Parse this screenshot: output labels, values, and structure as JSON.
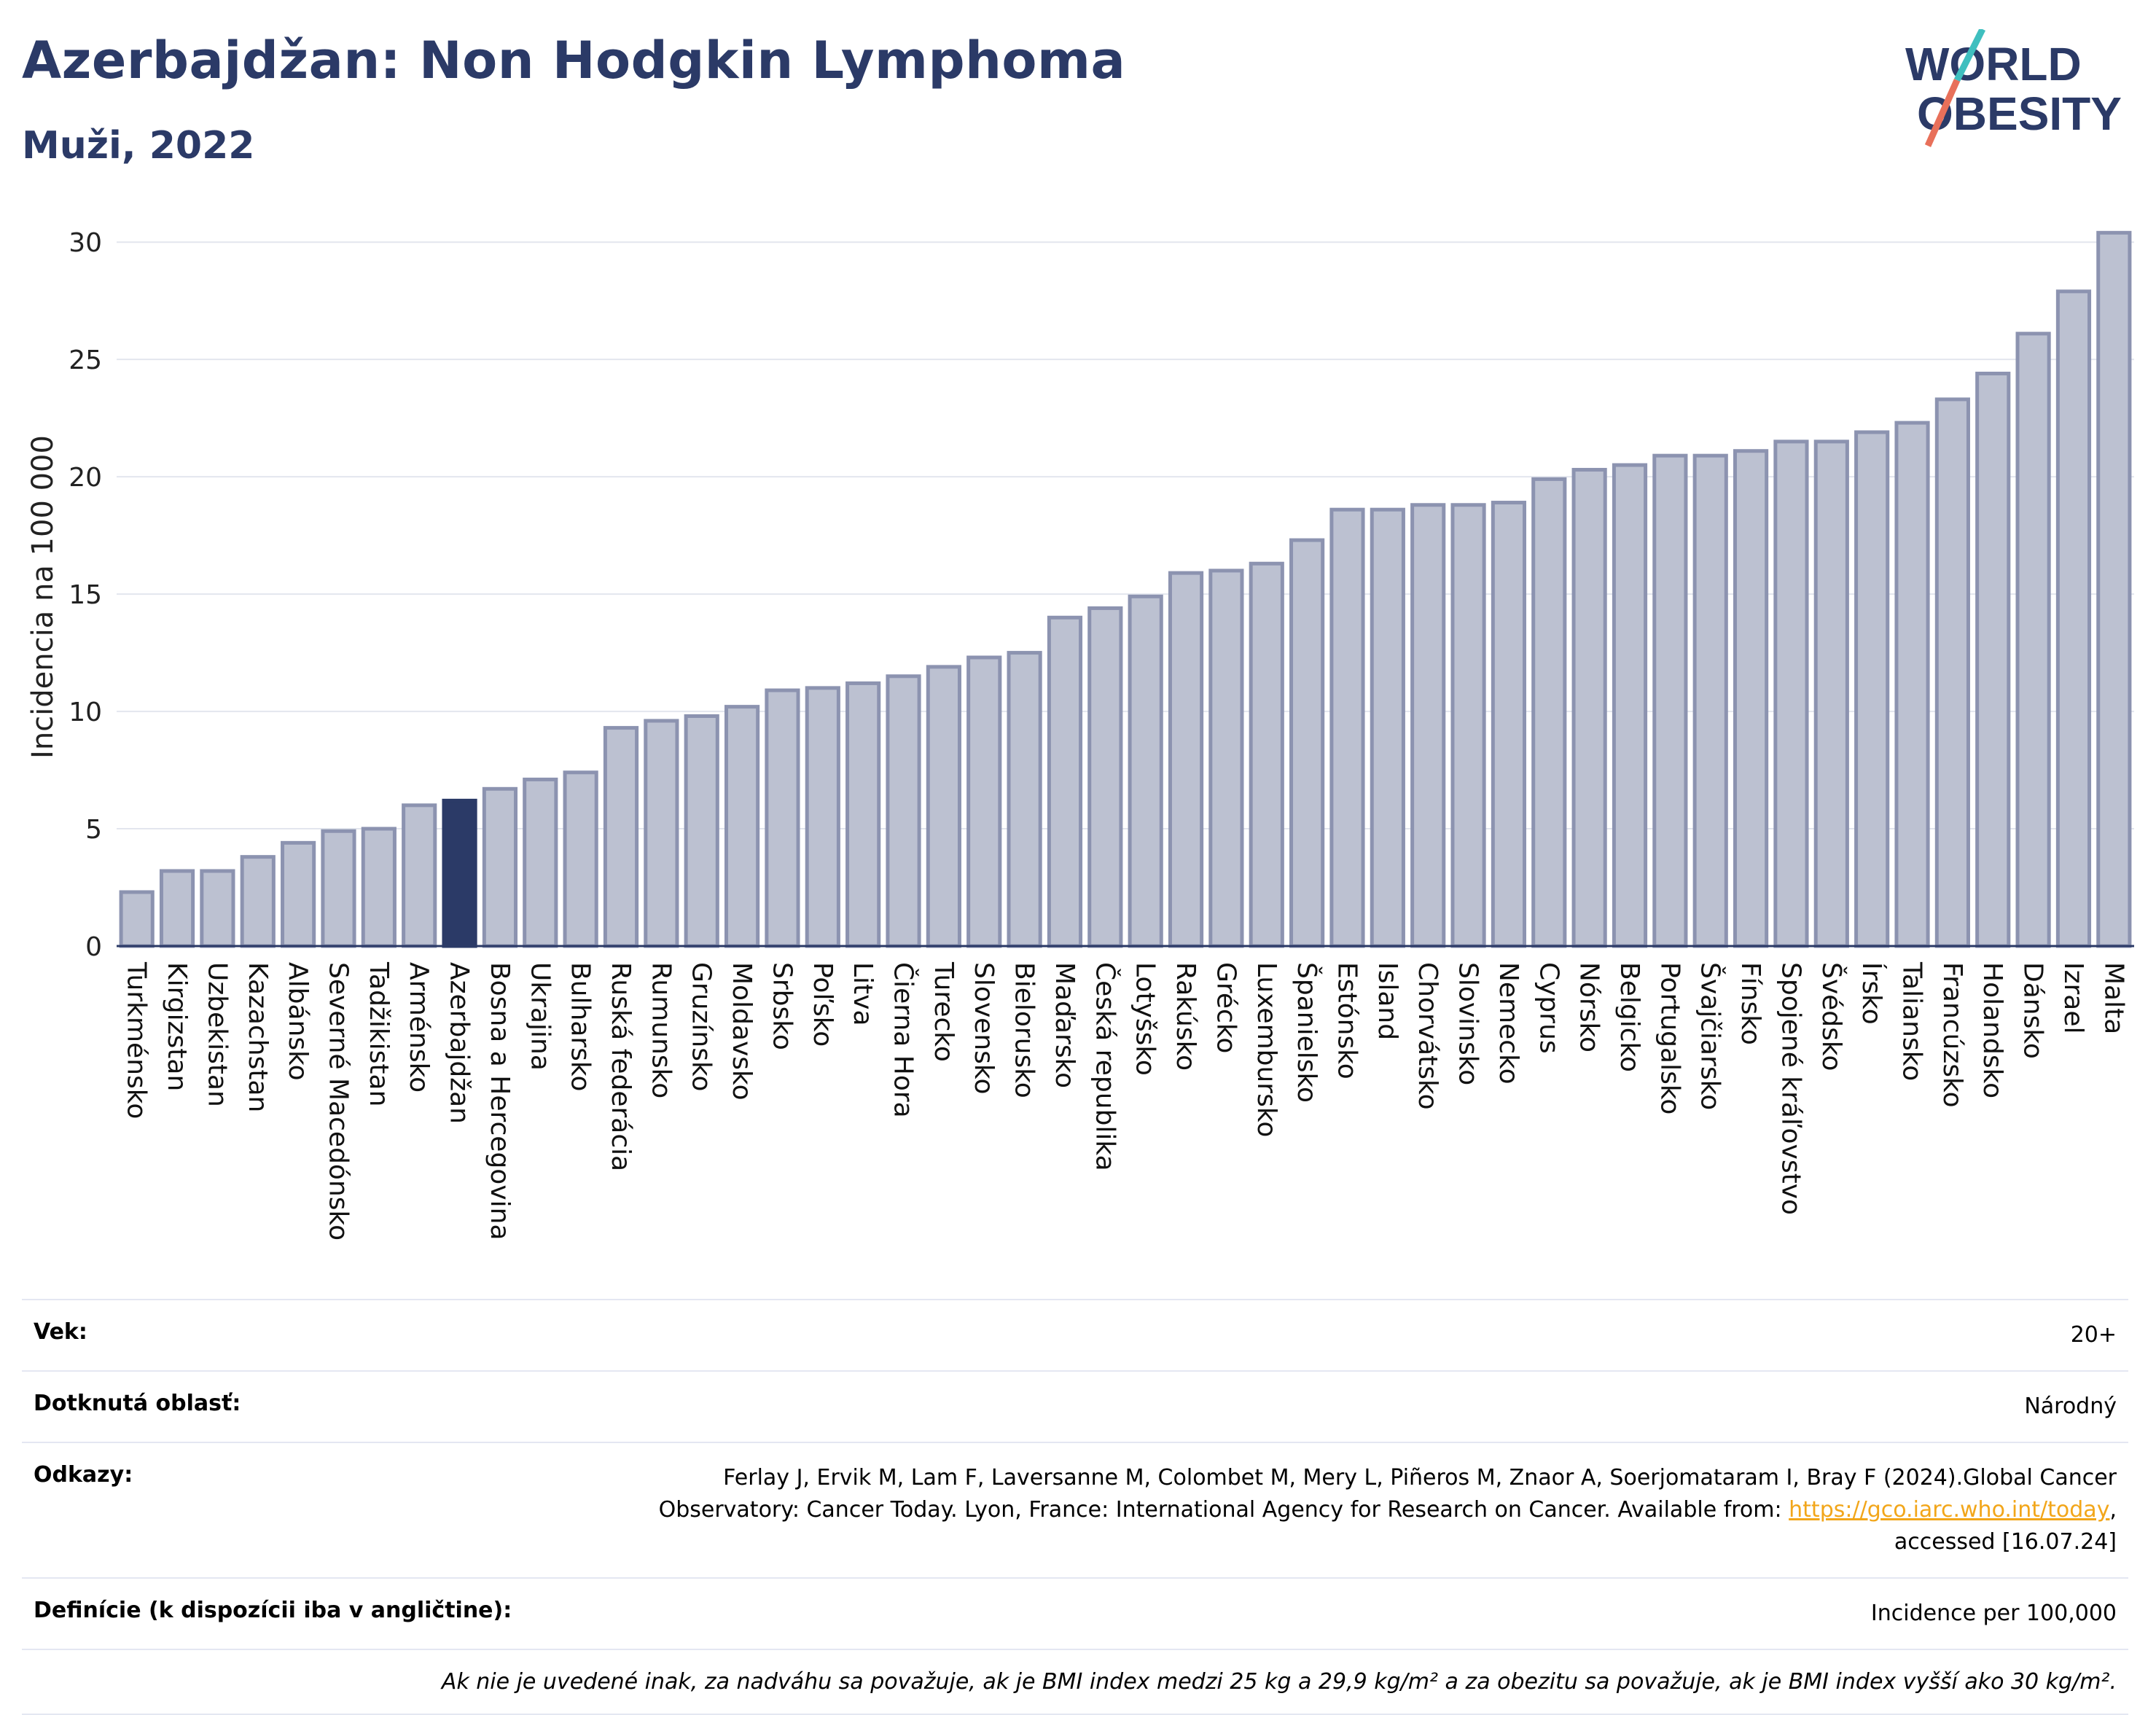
{
  "header": {
    "title": "Azerbajdžan: Non Hodgkin Lymphoma",
    "subtitle": "Muži, 2022",
    "logo_line1": "WORLD",
    "logo_line2": "OBESITY"
  },
  "colors": {
    "title": "#2b3a67",
    "bar_fill": "#bcc1d1",
    "bar_stroke": "#8c93b0",
    "highlight": "#2b3a67",
    "link": "#f2a61a",
    "logo_slash_top": "#3fbfbf",
    "logo_slash_bottom": "#e8705a"
  },
  "chart_data": {
    "type": "bar",
    "ylabel": "Incidencia na 100 000",
    "ylim": [
      0,
      31
    ],
    "yticks": [
      0,
      5,
      10,
      15,
      20,
      25,
      30
    ],
    "grid": true,
    "highlight": "Azerbajdžan",
    "categories": [
      "Turkménsko",
      "Kirgizstan",
      "Uzbekistan",
      "Kazachstan",
      "Albánsko",
      "Severné Macedónsko",
      "Tadžikistan",
      "Arménsko",
      "Azerbajdžan",
      "Bosna a Hercegovina",
      "Ukrajina",
      "Bulharsko",
      "Ruská federácia",
      "Rumunsko",
      "Gruzínsko",
      "Moldavsko",
      "Srbsko",
      "Poľsko",
      "Litva",
      "Čierna Hora",
      "Turecko",
      "Slovensko",
      "Bielorusko",
      "Maďarsko",
      "Česká republika",
      "Lotyšsko",
      "Rakúsko",
      "Grécko",
      "Luxembursko",
      "Španielsko",
      "Estónsko",
      "Island",
      "Chorvátsko",
      "Slovinsko",
      "Nemecko",
      "Cyprus",
      "Nórsko",
      "Belgicko",
      "Portugalsko",
      "Švajčiarsko",
      "Fínsko",
      "Spojené kráľovstvo",
      "Švédsko",
      "Írsko",
      "Taliansko",
      "Francúzsko",
      "Holandsko",
      "Dánsko",
      "Izrael",
      "Malta"
    ],
    "values": [
      2.3,
      3.2,
      3.2,
      3.8,
      4.4,
      4.9,
      5.0,
      6.0,
      6.2,
      6.7,
      7.1,
      7.4,
      9.3,
      9.6,
      9.8,
      10.2,
      10.9,
      11.0,
      11.2,
      11.5,
      11.9,
      12.3,
      12.5,
      14.0,
      14.4,
      14.9,
      15.9,
      16.0,
      16.3,
      17.3,
      18.6,
      18.6,
      18.8,
      18.8,
      18.9,
      19.9,
      20.3,
      20.5,
      20.9,
      20.9,
      21.1,
      21.5,
      21.5,
      21.9,
      22.3,
      23.3,
      24.4,
      26.1,
      27.9,
      30.4
    ]
  },
  "info": {
    "age_label": "Vek:",
    "age_value": "20+",
    "area_label": "Dotknutá oblasť:",
    "area_value": "Národný",
    "refs_label": "Odkazy:",
    "refs_text_1": "Ferlay J, Ervik M, Lam F, Laversanne M, Colombet M, Mery L, Piñeros M, Znaor A, Soerjomataram I, Bray F (2024).Global Cancer",
    "refs_text_2": "Observatory: Cancer Today. Lyon, France: International Agency for Research on Cancer. Available from:",
    "refs_link": "https://gco.iarc.who.int/today",
    "refs_text_3": "accessed [16.07.24]",
    "defs_label": "Definície (k dispozícii iba v angličtine):",
    "defs_value": "Incidence per 100,000",
    "note": "Ak nie je uvedené inak, za nadváhu sa považuje, ak je BMI index medzi 25 kg a 29,9 kg/m² a za obezitu sa považuje, ak je BMI index vyšší ako 30 kg/m²."
  }
}
